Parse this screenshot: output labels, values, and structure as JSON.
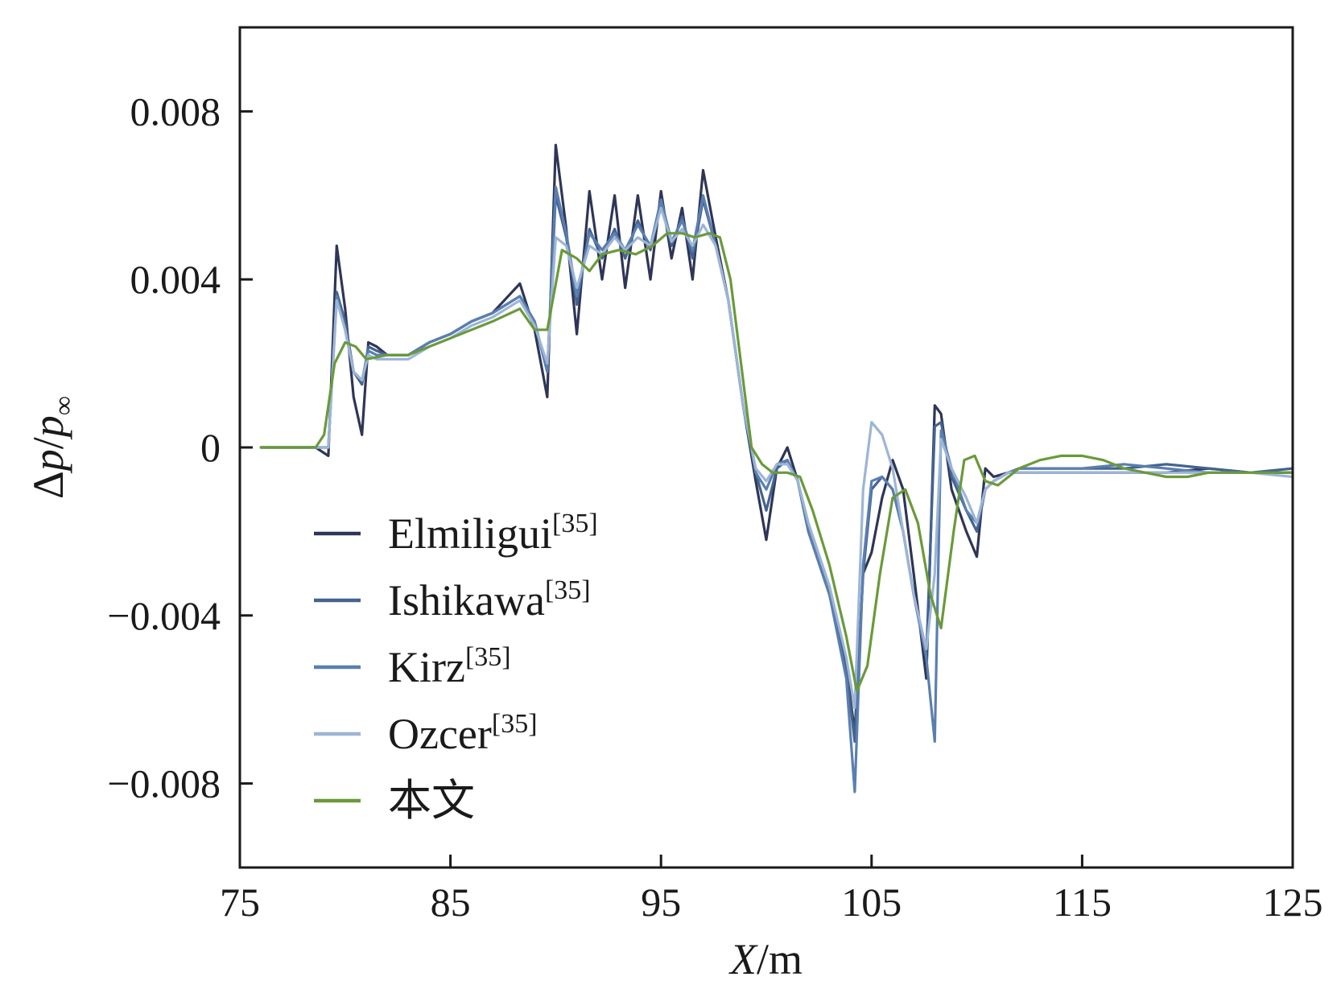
{
  "chart_data": {
    "type": "line",
    "xlabel": {
      "var": "X",
      "unit": "/m"
    },
    "ylabel": {
      "delta": "Δ",
      "var1": "p",
      "slash": "/",
      "var2": "p",
      "sub": "∞"
    },
    "xlim": [
      75,
      125
    ],
    "ylim": [
      -0.01,
      0.01
    ],
    "xticks": [
      {
        "value": 75,
        "label": "75"
      },
      {
        "value": 85,
        "label": "85"
      },
      {
        "value": 95,
        "label": "95"
      },
      {
        "value": 105,
        "label": "105"
      },
      {
        "value": 115,
        "label": "115"
      },
      {
        "value": 125,
        "label": "125"
      }
    ],
    "yticks": [
      {
        "value": 0.008,
        "label": "0.008"
      },
      {
        "value": 0.004,
        "label": "0.004"
      },
      {
        "value": 0,
        "label": "0"
      },
      {
        "value": -0.004,
        "label": "−0.004"
      },
      {
        "value": -0.008,
        "label": "−0.008"
      }
    ],
    "legend_position": "lower-left",
    "grid": false,
    "series": [
      {
        "name": "Elmiligui",
        "sup": "[35]",
        "color": "#2f3556",
        "x": [
          76,
          78.6,
          79.2,
          79.6,
          80,
          80.4,
          80.8,
          81.1,
          81.5,
          82,
          83,
          84,
          85,
          86,
          87,
          88.3,
          89,
          89.6,
          90,
          90.5,
          91,
          91.6,
          92.2,
          92.8,
          93.3,
          93.9,
          94.5,
          95,
          95.5,
          96,
          96.5,
          97,
          97.6,
          98.2,
          98.9,
          99.5,
          100,
          100.5,
          101,
          101.5,
          102,
          103,
          103.8,
          104.2,
          104.6,
          105,
          105.5,
          106,
          106.5,
          107,
          107.6,
          108,
          108.3,
          108.8,
          109.5,
          110,
          110.4,
          110.8,
          111.5,
          112,
          113,
          115,
          117,
          119,
          121,
          123,
          125
        ],
        "y": [
          0,
          0,
          -0.0002,
          0.0048,
          0.0033,
          0.0012,
          0.0003,
          0.0025,
          0.0024,
          0.0022,
          0.0022,
          0.0025,
          0.0027,
          0.003,
          0.0032,
          0.0039,
          0.0028,
          0.0012,
          0.0072,
          0.0052,
          0.0027,
          0.0061,
          0.004,
          0.006,
          0.0038,
          0.006,
          0.004,
          0.0061,
          0.0045,
          0.0057,
          0.004,
          0.0066,
          0.005,
          0.0035,
          0.001,
          -0.0008,
          -0.0022,
          -0.0005,
          0.0,
          -0.0008,
          -0.002,
          -0.0035,
          -0.0052,
          -0.0068,
          -0.003,
          -0.0025,
          -0.0012,
          -0.0003,
          -0.001,
          -0.003,
          -0.0055,
          0.001,
          0.0008,
          -0.001,
          -0.002,
          -0.0026,
          -0.0005,
          -0.0007,
          -0.0006,
          -0.0006,
          -0.0006,
          -0.0006,
          -0.0006,
          -0.0006,
          -0.0005,
          -0.0006,
          -0.0006
        ]
      },
      {
        "name": "Ishikawa",
        "sup": "[35]",
        "color": "#44638f",
        "x": [
          76,
          78.6,
          79.2,
          79.6,
          80,
          80.4,
          80.8,
          81.1,
          81.5,
          82,
          83,
          84,
          85,
          86,
          87,
          88.3,
          89,
          89.6,
          90,
          90.5,
          91,
          91.6,
          92.2,
          92.8,
          93.3,
          93.9,
          94.5,
          95,
          95.5,
          96,
          96.5,
          97,
          97.6,
          98.2,
          98.9,
          99.5,
          100,
          100.5,
          101,
          101.5,
          102,
          103,
          103.8,
          104.2,
          104.6,
          105,
          105.5,
          106,
          106.5,
          107,
          107.6,
          108,
          108.3,
          108.8,
          109.5,
          110,
          110.4,
          110.8,
          111.5,
          112,
          113,
          115,
          117,
          119,
          121,
          123,
          125
        ],
        "y": [
          0,
          0,
          0.0,
          0.0037,
          0.003,
          0.0018,
          0.0015,
          0.0024,
          0.0023,
          0.0022,
          0.0022,
          0.0025,
          0.0027,
          0.003,
          0.0032,
          0.0036,
          0.003,
          0.0018,
          0.006,
          0.005,
          0.0034,
          0.0052,
          0.0045,
          0.0052,
          0.0045,
          0.0054,
          0.0047,
          0.0058,
          0.0048,
          0.0055,
          0.0045,
          0.0059,
          0.0048,
          0.0035,
          0.001,
          -0.0006,
          -0.0015,
          -0.0005,
          -0.0003,
          -0.0008,
          -0.002,
          -0.0035,
          -0.0053,
          -0.007,
          -0.003,
          -0.001,
          -0.0007,
          -0.001,
          -0.002,
          -0.0035,
          -0.005,
          0.0005,
          0.0006,
          -0.0007,
          -0.0015,
          -0.002,
          -0.001,
          -0.0008,
          -0.0006,
          -0.0005,
          -0.0005,
          -0.0005,
          -0.0005,
          -0.0004,
          -0.0005,
          -0.0006,
          -0.0005
        ]
      },
      {
        "name": "Kirz",
        "sup": "[35]",
        "color": "#5a7fb0",
        "x": [
          76,
          78.6,
          79.2,
          79.6,
          80,
          80.4,
          80.8,
          81.1,
          81.5,
          82,
          83,
          84,
          85,
          86,
          87,
          88.3,
          89,
          89.6,
          90,
          90.5,
          91,
          91.6,
          92.2,
          92.8,
          93.3,
          93.9,
          94.5,
          95,
          95.5,
          96,
          96.5,
          97,
          97.6,
          98.2,
          98.9,
          99.5,
          100,
          100.5,
          101,
          101.5,
          102,
          103,
          103.8,
          104.2,
          104.6,
          105,
          105.5,
          106,
          106.5,
          107,
          107.6,
          108,
          108.3,
          108.8,
          109.5,
          110,
          110.4,
          110.8,
          111.5,
          112,
          113,
          115,
          117,
          119,
          121,
          123,
          125
        ],
        "y": [
          0,
          0,
          0.0,
          0.0036,
          0.0028,
          0.0018,
          0.0016,
          0.0023,
          0.0022,
          0.0022,
          0.0022,
          0.0025,
          0.0027,
          0.003,
          0.0032,
          0.0036,
          0.003,
          0.0018,
          0.0062,
          0.0051,
          0.0036,
          0.0051,
          0.0047,
          0.0051,
          0.0047,
          0.0053,
          0.0048,
          0.0059,
          0.0049,
          0.0054,
          0.0047,
          0.006,
          0.0048,
          0.0035,
          0.001,
          -0.0006,
          -0.001,
          -0.0004,
          -0.0003,
          -0.0008,
          -0.002,
          -0.0035,
          -0.0055,
          -0.0082,
          -0.0028,
          -0.0008,
          -0.0007,
          -0.001,
          -0.002,
          -0.0035,
          -0.005,
          -0.007,
          0.0004,
          -0.0005,
          -0.0015,
          -0.0018,
          -0.001,
          -0.0008,
          -0.0006,
          -0.0005,
          -0.0005,
          -0.0005,
          -0.0004,
          -0.0005,
          -0.0006,
          -0.0006,
          -0.0006
        ]
      },
      {
        "name": "Ozcer",
        "sup": "[35]",
        "color": "#9db5d6",
        "x": [
          76,
          78.6,
          79.2,
          79.6,
          80,
          80.4,
          80.8,
          81.1,
          81.5,
          82,
          83,
          84,
          85,
          86,
          87,
          88.3,
          89,
          89.6,
          90,
          90.5,
          91,
          91.6,
          92.2,
          92.8,
          93.3,
          93.9,
          94.5,
          95,
          95.5,
          96,
          96.5,
          97,
          97.6,
          98.2,
          98.9,
          99.5,
          100,
          100.5,
          101,
          101.5,
          102,
          103,
          103.8,
          104.2,
          104.6,
          105,
          105.5,
          106,
          106.5,
          107,
          107.6,
          108,
          108.3,
          108.8,
          109.5,
          110,
          110.4,
          110.8,
          111.5,
          112,
          113,
          115,
          117,
          119,
          121,
          123,
          125
        ],
        "y": [
          0,
          0,
          0.0,
          0.0035,
          0.0028,
          0.0018,
          0.0016,
          0.0022,
          0.0021,
          0.0021,
          0.0021,
          0.0024,
          0.0026,
          0.0029,
          0.0031,
          0.0035,
          0.0029,
          0.002,
          0.005,
          0.0048,
          0.0038,
          0.0048,
          0.0046,
          0.005,
          0.0047,
          0.005,
          0.0048,
          0.0057,
          0.0049,
          0.0052,
          0.0048,
          0.0053,
          0.0048,
          0.0035,
          0.001,
          -0.0005,
          -0.0008,
          -0.0004,
          -0.0004,
          -0.0008,
          -0.0018,
          -0.0033,
          -0.005,
          -0.0062,
          -0.001,
          0.0006,
          0.0003,
          -0.0005,
          -0.002,
          -0.0035,
          -0.0048,
          -0.003,
          0.0002,
          -0.0005,
          -0.0012,
          -0.0018,
          -0.001,
          -0.0008,
          -0.0006,
          -0.0006,
          -0.0006,
          -0.0006,
          -0.0006,
          -0.0006,
          -0.0006,
          -0.0006,
          -0.0007
        ]
      },
      {
        "name": "本文",
        "sup": "",
        "color": "#6a9a3a",
        "x": [
          76,
          78.6,
          79,
          79.5,
          80,
          80.5,
          81,
          82,
          83,
          84,
          85,
          86,
          87,
          88.3,
          89,
          89.6,
          90.3,
          91,
          91.6,
          92.2,
          93,
          93.8,
          94.6,
          95.3,
          96,
          96.6,
          97.3,
          97.8,
          98.3,
          98.8,
          99.3,
          99.8,
          100.3,
          101,
          101.6,
          102.2,
          103,
          103.8,
          104.3,
          104.8,
          105.4,
          106,
          106.6,
          107.2,
          107.8,
          108.3,
          108.9,
          109.4,
          109.9,
          110.4,
          111,
          112,
          113,
          114,
          115,
          116,
          117,
          118,
          119,
          120,
          121,
          122,
          123,
          125
        ],
        "y": [
          0,
          0,
          0.0003,
          0.002,
          0.0025,
          0.0024,
          0.0021,
          0.0022,
          0.0022,
          0.0024,
          0.0026,
          0.0028,
          0.003,
          0.0033,
          0.0028,
          0.0028,
          0.0047,
          0.0045,
          0.0042,
          0.0046,
          0.0047,
          0.0046,
          0.0048,
          0.0051,
          0.0051,
          0.005,
          0.0051,
          0.005,
          0.004,
          0.002,
          0.0,
          -0.0004,
          -0.0006,
          -0.0006,
          -0.0007,
          -0.0015,
          -0.0028,
          -0.0045,
          -0.0058,
          -0.0052,
          -0.003,
          -0.0012,
          -0.001,
          -0.0018,
          -0.0035,
          -0.0043,
          -0.002,
          -0.0003,
          -0.0002,
          -0.0008,
          -0.0009,
          -0.0005,
          -0.0003,
          -0.0002,
          -0.0002,
          -0.0003,
          -0.0005,
          -0.0006,
          -0.0007,
          -0.0007,
          -0.0006,
          -0.0006,
          -0.0006,
          -0.0006
        ]
      }
    ]
  }
}
